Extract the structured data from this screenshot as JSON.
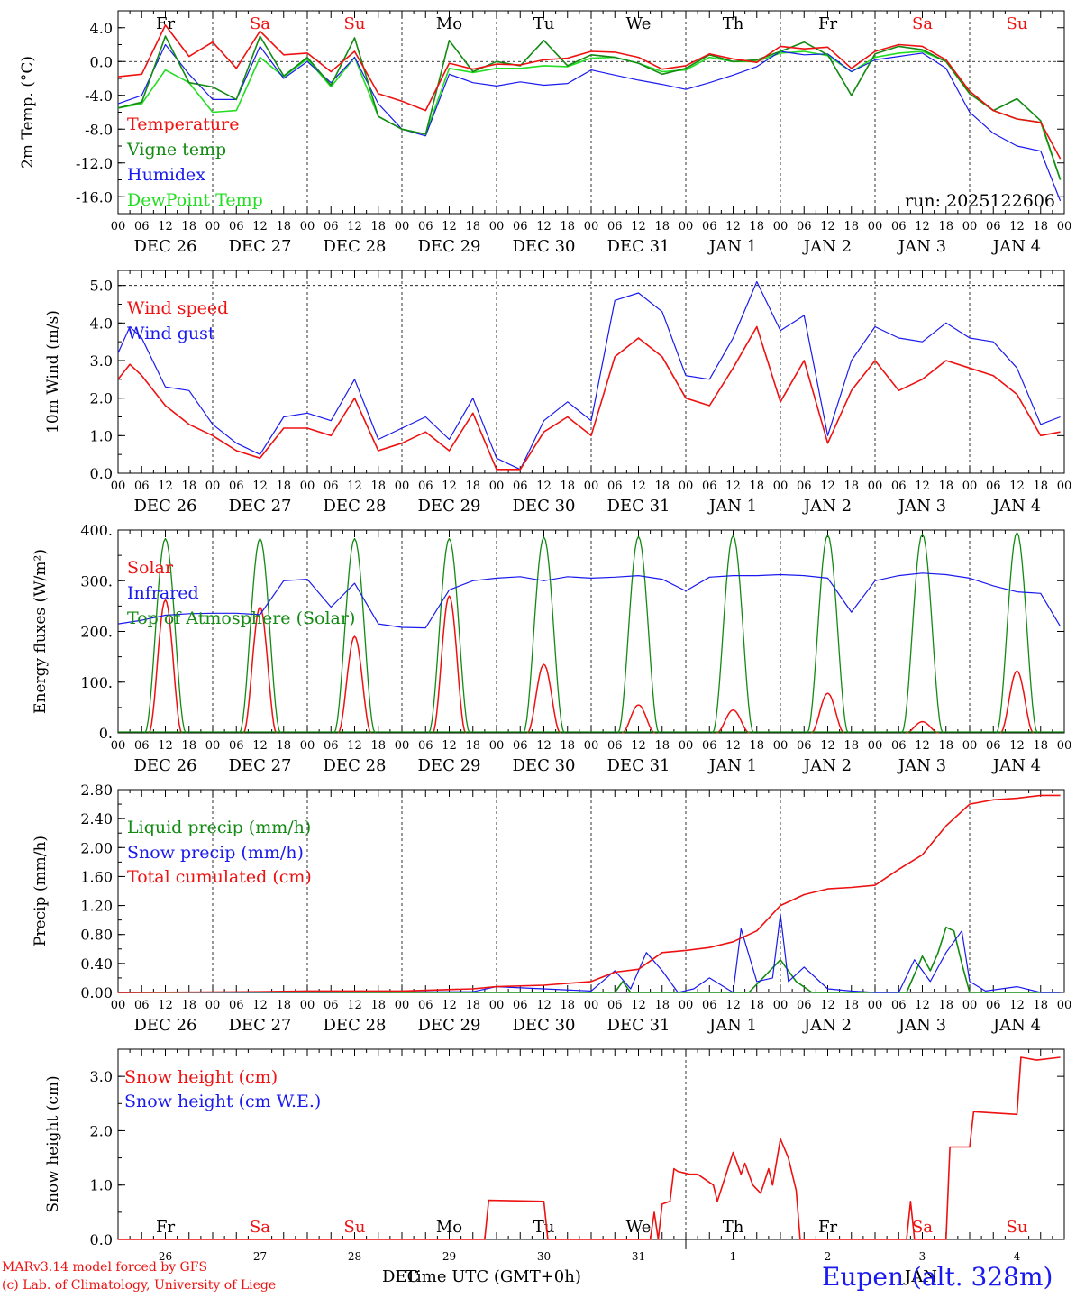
{
  "footer": {
    "model": "MARv3.14 model forced by GFS",
    "lab": "(c) Lab. of Climatology, University of Liege",
    "xlabel": "Time UTC (GMT+0h)",
    "dec_label": "DEC",
    "jan_label": "JAN",
    "station": "Eupen (alt. 328m)"
  },
  "colors": {
    "red": "#ee1111",
    "green": "#138a13",
    "blue": "#1a1aee",
    "lightgreen": "#22dd22",
    "axis": "#000000"
  },
  "time_axis": {
    "hour_ticks": [
      "00",
      "06",
      "12",
      "18"
    ],
    "date_labels": [
      "DEC 26",
      "DEC 27",
      "DEC 28",
      "DEC 29",
      "DEC 30",
      "DEC 31",
      "JAN  1",
      "JAN  2",
      "JAN  3",
      "JAN  4"
    ],
    "weekdays": [
      "Fr",
      "Sa",
      "Su",
      "Mo",
      "Tu",
      "We",
      "Th",
      "Fr",
      "Sa",
      "Su"
    ],
    "weekend_flags": [
      false,
      true,
      true,
      false,
      false,
      false,
      false,
      false,
      true,
      true
    ],
    "day_numbers": [
      "26",
      "27",
      "28",
      "29",
      "30",
      "31",
      "1",
      "2",
      "3",
      "4"
    ]
  },
  "chart_data": [
    {
      "type": "line",
      "ylabel": "2m Temp. (°C)",
      "ylim": [
        -18,
        6
      ],
      "yticks": [
        "4.0",
        "0.0",
        "-4.0",
        "-8.0",
        "-12.0",
        "-16.0"
      ],
      "ytick_values": [
        4,
        0,
        -4,
        -8,
        -12,
        -16
      ],
      "ref_line": 0,
      "annotation": "run: 2025122606",
      "legend": [
        "Temperature",
        "Vigne temp",
        "Humidex",
        "DewPoint Temp"
      ],
      "series": [
        {
          "name": "Temperature",
          "color": "red",
          "x": [
            0,
            6,
            12,
            18,
            24,
            30,
            36,
            42,
            48,
            54,
            60,
            66,
            72,
            78,
            84,
            90,
            96,
            102,
            108,
            114,
            120,
            126,
            132,
            138,
            144,
            150,
            156,
            162,
            168,
            174,
            180,
            186,
            192,
            198,
            204,
            210,
            216,
            222,
            228,
            234,
            239
          ],
          "values": [
            -1.8,
            -1.5,
            4.3,
            0.6,
            2.3,
            -0.8,
            3.6,
            0.8,
            1.0,
            -1.2,
            1.2,
            -3.8,
            -4.7,
            -5.8,
            -0.2,
            -0.9,
            -0.3,
            -0.4,
            0.2,
            0.4,
            1.2,
            1.1,
            0.5,
            -0.9,
            -0.5,
            0.9,
            0.3,
            -0.1,
            1.8,
            1.5,
            1.7,
            -0.8,
            1.2,
            2.0,
            1.8,
            0.2,
            -3.5,
            -5.8,
            -6.8,
            -7.2,
            -11.5
          ]
        },
        {
          "name": "Vigne temp",
          "color": "green",
          "x": [
            0,
            6,
            12,
            18,
            24,
            30,
            36,
            42,
            48,
            54,
            60,
            66,
            72,
            78,
            84,
            90,
            96,
            102,
            108,
            114,
            120,
            126,
            132,
            138,
            144,
            150,
            156,
            162,
            168,
            174,
            180,
            186,
            192,
            198,
            204,
            210,
            216,
            222,
            228,
            234,
            239
          ],
          "values": [
            -5.5,
            -4.8,
            3.0,
            -2.5,
            -3.0,
            -4.5,
            3.0,
            -1.7,
            0.5,
            -2.8,
            2.8,
            -6.5,
            -8.0,
            -8.6,
            2.5,
            -1.2,
            0.0,
            -0.5,
            2.5,
            -0.5,
            0.8,
            0.5,
            -0.2,
            -1.5,
            -0.8,
            0.8,
            0.0,
            0.2,
            1.2,
            2.3,
            0.8,
            -4.0,
            0.9,
            1.8,
            1.4,
            0.0,
            -3.8,
            -5.8,
            -4.4,
            -7.0,
            -14.0
          ]
        },
        {
          "name": "Humidex",
          "color": "blue",
          "x": [
            0,
            6,
            12,
            18,
            24,
            30,
            36,
            42,
            48,
            54,
            60,
            66,
            72,
            78,
            84,
            90,
            96,
            102,
            108,
            114,
            120,
            126,
            132,
            138,
            144,
            150,
            156,
            162,
            168,
            174,
            180,
            186,
            192,
            198,
            204,
            210,
            216,
            222,
            228,
            234,
            239
          ],
          "values": [
            -5.0,
            -4.0,
            2.0,
            -1.5,
            -4.5,
            -4.5,
            1.8,
            -2.0,
            0.0,
            -2.5,
            0.5,
            -5.0,
            -8.0,
            -8.8,
            -1.5,
            -2.5,
            -2.9,
            -2.4,
            -2.8,
            -2.6,
            -1.0,
            -1.6,
            -2.2,
            -2.7,
            -3.3,
            -2.5,
            -1.6,
            -0.6,
            1.2,
            0.8,
            0.9,
            -1.2,
            0.2,
            0.6,
            1.0,
            -0.8,
            -6.0,
            -8.5,
            -10.0,
            -10.6,
            -16.5
          ]
        },
        {
          "name": "DewPoint Temp",
          "color": "lightgreen",
          "x": [
            0,
            6,
            12,
            18,
            24,
            30,
            36,
            42,
            48,
            54,
            60,
            66,
            72,
            78,
            84,
            90,
            96,
            102,
            108,
            114,
            120,
            126,
            132,
            138,
            144,
            150,
            156,
            162,
            168,
            174,
            180,
            186,
            192,
            198,
            204,
            210,
            216,
            222,
            228,
            234,
            239
          ],
          "values": [
            -5.5,
            -5.0,
            -1.0,
            -2.5,
            -6.0,
            -5.8,
            0.5,
            -1.8,
            0.3,
            -3.0,
            0.5,
            -6.5,
            -8.0,
            -8.6,
            -0.8,
            -1.3,
            -0.8,
            -0.8,
            -0.5,
            -0.6,
            0.4,
            0.5,
            -0.2,
            -1.2,
            -1.0,
            0.5,
            0.0,
            0.0,
            1.0,
            1.2,
            0.7,
            -1.2,
            0.5,
            1.0,
            1.2,
            0.0,
            -3.8,
            -5.8,
            -6.8,
            -7.2,
            -14.0
          ]
        }
      ]
    },
    {
      "type": "line",
      "ylabel": "10m Wind (m/s)",
      "ylim": [
        0,
        5.4
      ],
      "yticks": [
        "5.0",
        "4.0",
        "3.0",
        "2.0",
        "1.0",
        "0.0"
      ],
      "ytick_values": [
        5,
        4,
        3,
        2,
        1,
        0
      ],
      "ref_line": 5,
      "legend": [
        "Wind speed",
        "Wind gust"
      ],
      "series": [
        {
          "name": "Wind speed",
          "color": "red",
          "x": [
            0,
            3,
            6,
            12,
            18,
            24,
            30,
            36,
            42,
            48,
            54,
            60,
            66,
            72,
            78,
            84,
            90,
            96,
            102,
            108,
            114,
            120,
            126,
            132,
            138,
            144,
            150,
            156,
            162,
            168,
            174,
            180,
            186,
            192,
            198,
            204,
            210,
            216,
            222,
            228,
            234,
            239
          ],
          "values": [
            2.5,
            2.9,
            2.6,
            1.8,
            1.3,
            1.0,
            0.6,
            0.4,
            1.2,
            1.2,
            1.0,
            2.0,
            0.6,
            0.8,
            1.1,
            0.6,
            1.6,
            0.1,
            0.1,
            1.1,
            1.5,
            1.0,
            3.1,
            3.6,
            3.1,
            2.0,
            1.8,
            2.8,
            3.9,
            1.9,
            3.0,
            0.8,
            2.2,
            3.0,
            2.2,
            2.5,
            3.0,
            2.8,
            2.6,
            2.1,
            1.0,
            1.1
          ]
        },
        {
          "name": "Wind gust",
          "color": "blue",
          "x": [
            0,
            3,
            6,
            12,
            18,
            24,
            30,
            36,
            42,
            48,
            54,
            60,
            66,
            72,
            78,
            84,
            90,
            96,
            102,
            108,
            114,
            120,
            126,
            132,
            138,
            144,
            150,
            156,
            162,
            168,
            174,
            180,
            186,
            192,
            198,
            204,
            210,
            216,
            222,
            228,
            234,
            239
          ],
          "values": [
            3.2,
            3.9,
            3.6,
            2.3,
            2.2,
            1.3,
            0.8,
            0.5,
            1.5,
            1.6,
            1.4,
            2.5,
            0.9,
            1.2,
            1.5,
            0.9,
            2.0,
            0.4,
            0.1,
            1.4,
            1.9,
            1.4,
            4.6,
            4.8,
            4.3,
            2.6,
            2.5,
            3.6,
            5.1,
            3.8,
            4.2,
            1.0,
            3.0,
            3.9,
            3.6,
            3.5,
            4.0,
            3.6,
            3.5,
            2.8,
            1.3,
            1.5
          ]
        }
      ]
    },
    {
      "type": "line",
      "ylabel": "Energy fluxes (W/m²)",
      "ylim": [
        0,
        400
      ],
      "yticks": [
        "400.",
        "300.",
        "200.",
        "100.",
        "0."
      ],
      "ytick_values": [
        400,
        300,
        200,
        100,
        0
      ],
      "legend": [
        "Solar",
        "Infrared",
        "Top of Atmosphere (Solar)"
      ],
      "toa_peak": [
        383,
        383,
        383,
        383,
        386,
        387,
        389,
        390,
        392,
        395
      ],
      "solar_peak": [
        262,
        248,
        190,
        270,
        135,
        55,
        45,
        78,
        22,
        122
      ],
      "series": [
        {
          "name": "Infrared",
          "color": "blue",
          "x": [
            0,
            6,
            12,
            18,
            24,
            30,
            36,
            42,
            48,
            54,
            60,
            66,
            72,
            78,
            84,
            90,
            96,
            102,
            108,
            114,
            120,
            126,
            132,
            138,
            144,
            150,
            156,
            162,
            168,
            174,
            180,
            186,
            192,
            198,
            204,
            210,
            216,
            222,
            228,
            234,
            239
          ],
          "values": [
            215,
            222,
            232,
            235,
            236,
            236,
            233,
            300,
            303,
            248,
            295,
            215,
            208,
            207,
            282,
            300,
            305,
            308,
            300,
            308,
            305,
            307,
            310,
            303,
            280,
            307,
            310,
            310,
            312,
            310,
            305,
            238,
            300,
            310,
            315,
            312,
            305,
            290,
            278,
            275,
            210
          ]
        }
      ]
    },
    {
      "type": "line",
      "ylabel": "Precip (mm/h)",
      "ylim": [
        0,
        2.8
      ],
      "yticks": [
        "2.80",
        "2.40",
        "2.00",
        "1.60",
        "1.20",
        "0.80",
        "0.40",
        "0.00"
      ],
      "ytick_values": [
        2.8,
        2.4,
        2.0,
        1.6,
        1.2,
        0.8,
        0.4,
        0.0
      ],
      "legend": [
        "Liquid precip (mm/h)",
        "Snow precip (mm/h)",
        "Total cumulated (cm)"
      ],
      "series": [
        {
          "name": "Total cumulated (cm)",
          "color": "red",
          "x": [
            0,
            36,
            48,
            72,
            90,
            96,
            108,
            120,
            126,
            132,
            138,
            144,
            150,
            156,
            162,
            168,
            174,
            180,
            186,
            192,
            198,
            204,
            210,
            216,
            222,
            228,
            234,
            239
          ],
          "values": [
            0,
            0.01,
            0.02,
            0.02,
            0.05,
            0.08,
            0.1,
            0.15,
            0.28,
            0.32,
            0.55,
            0.58,
            0.62,
            0.7,
            0.85,
            1.2,
            1.35,
            1.43,
            1.45,
            1.48,
            1.7,
            1.9,
            2.3,
            2.6,
            2.66,
            2.68,
            2.72,
            2.72
          ]
        },
        {
          "name": "Snow precip (mm/h)",
          "color": "blue",
          "x": [
            0,
            90,
            96,
            120,
            126,
            130,
            134,
            138,
            142,
            146,
            150,
            156,
            158,
            162,
            166,
            168,
            170,
            174,
            180,
            186,
            192,
            198,
            202,
            206,
            210,
            214,
            216,
            220,
            228,
            234,
            239
          ],
          "values": [
            0,
            0.01,
            0.08,
            0.02,
            0.3,
            0.05,
            0.55,
            0.3,
            0.0,
            0.05,
            0.2,
            0.0,
            0.88,
            0.15,
            0.2,
            1.08,
            0.15,
            0.35,
            0.05,
            0.02,
            0.0,
            0.0,
            0.45,
            0.15,
            0.55,
            0.85,
            0.15,
            0.02,
            0.08,
            0.0,
            0.0
          ]
        },
        {
          "name": "Liquid precip (mm/h)",
          "color": "green",
          "x": [
            0,
            126,
            128,
            130,
            160,
            168,
            172,
            176,
            200,
            204,
            206,
            208,
            210,
            212,
            214,
            216,
            239
          ],
          "values": [
            0,
            0.0,
            0.15,
            0.0,
            0.0,
            0.45,
            0.15,
            0.0,
            0.0,
            0.5,
            0.3,
            0.55,
            0.9,
            0.85,
            0.4,
            0.0,
            0.0
          ]
        }
      ]
    },
    {
      "type": "line",
      "ylabel": "Snow height (cm)",
      "ylim": [
        0,
        3.5
      ],
      "yticks": [
        "3.0",
        "2.0",
        "1.0",
        "0.0"
      ],
      "ytick_values": [
        3,
        2,
        1,
        0
      ],
      "legend": [
        "Snow height (cm)",
        "Snow height (cm W.E.)"
      ],
      "series": [
        {
          "name": "Snow height (cm)",
          "color": "red",
          "x": [
            0,
            93,
            94,
            108,
            109,
            120,
            135,
            136,
            137,
            138,
            140,
            141,
            142,
            145,
            147,
            151,
            152,
            156,
            158,
            159,
            161,
            163,
            165,
            166,
            168,
            170,
            172,
            173,
            177,
            178,
            200,
            201,
            202,
            205,
            206,
            208,
            209,
            210,
            211,
            216,
            217,
            228,
            229,
            233,
            239
          ],
          "values": [
            0,
            0,
            0.72,
            0.7,
            0,
            0,
            0,
            0.5,
            0,
            0.65,
            0.7,
            1.3,
            1.25,
            1.2,
            1.2,
            1.0,
            0.7,
            1.6,
            1.2,
            1.4,
            1.0,
            0.85,
            1.3,
            1.0,
            1.85,
            1.5,
            0.9,
            0.0,
            0.0,
            0.0,
            0.0,
            0.7,
            0.0,
            0.0,
            0.0,
            0.0,
            0.0,
            0.0,
            1.7,
            1.7,
            2.35,
            2.3,
            3.35,
            3.3,
            3.35
          ]
        }
      ]
    }
  ]
}
